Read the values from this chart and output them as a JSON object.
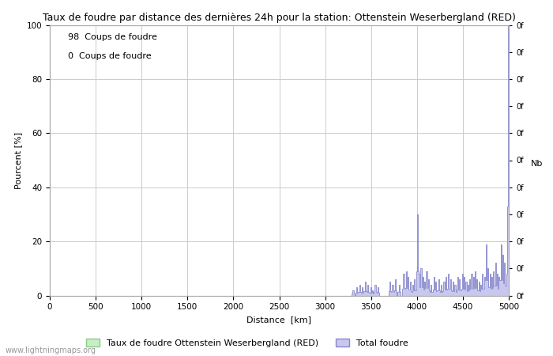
{
  "title": "Taux de foudre par distance des dernières 24h pour la station: Ottenstein Weserbergland (RED)",
  "xlabel": "Distance  [km]",
  "ylabel_left": "Pourcent [%]",
  "ylabel_right": "Nb",
  "xlim": [
    0,
    5000
  ],
  "ylim_left": [
    0,
    100
  ],
  "annotation1": "98  Coups de foudre",
  "annotation2": "0  Coups de foudre",
  "watermark": "www.lightningmaps.org",
  "legend1": "Taux de foudre Ottenstein Weserbergland (RED)",
  "legend2": "Total foudre",
  "background_color": "#ffffff",
  "grid_color": "#cccccc",
  "blue_fill_color": "#c8c8ee",
  "blue_line_color": "#8888cc",
  "green_fill_color": "#c8eec8",
  "green_line_color": "#88cc88",
  "title_fontsize": 9,
  "axis_fontsize": 8,
  "annotation_fontsize": 8
}
